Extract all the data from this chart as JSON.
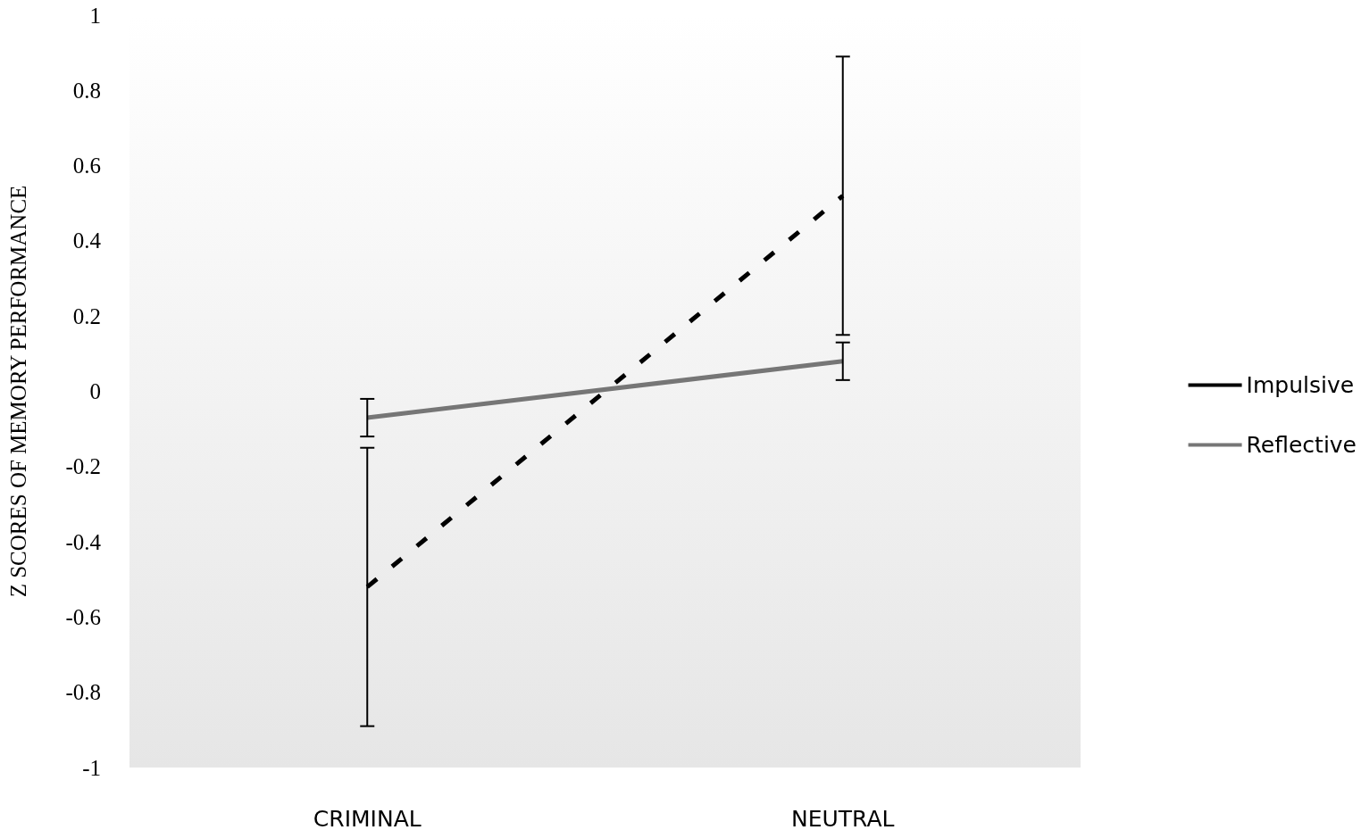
{
  "chart_data": {
    "type": "line",
    "ylabel": "Z SCORES OF MEMORY PERFORMANCE",
    "categories": [
      "CRIMINAL",
      "NEUTRAL"
    ],
    "series": [
      {
        "name": "Impulsive",
        "color": "#000000",
        "values": [
          -0.52,
          0.52
        ],
        "errors": [
          0.37,
          0.37
        ],
        "line_style": "dashed"
      },
      {
        "name": "Reflective",
        "color": "#767676",
        "values": [
          -0.07,
          0.08
        ],
        "errors": [
          0.05,
          0.05
        ],
        "line_style": "solid"
      }
    ],
    "ylim": [
      -1,
      1
    ],
    "yticks": [
      -1,
      -0.8,
      -0.6,
      -0.4,
      -0.2,
      0,
      0.2,
      0.4,
      0.6,
      0.8,
      1
    ],
    "grid": false,
    "legend": "right",
    "marker": "none"
  }
}
